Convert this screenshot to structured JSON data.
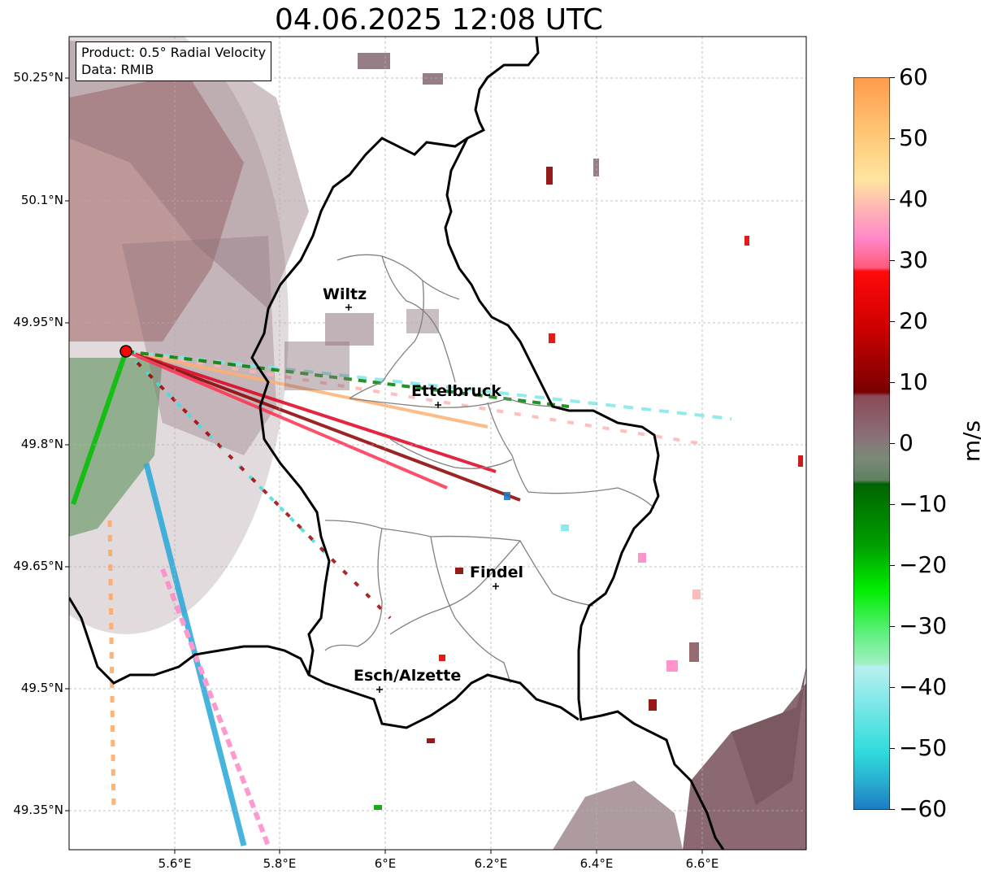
{
  "title": "04.06.2025 12:08 UTC",
  "info_box": {
    "product": "Product: 0.5° Radial Velocity",
    "data": "Data: RMIB"
  },
  "lat_labels": [
    "50.25°N",
    "50.1°N",
    "49.95°N",
    "49.8°N",
    "49.65°N",
    "49.5°N",
    "49.35°N"
  ],
  "lon_labels": [
    "5.6°E",
    "5.8°E",
    "6°E",
    "6.2°E",
    "6.4°E",
    "6.6°E"
  ],
  "cities": [
    "Wiltz",
    "Ettelbruck",
    "Findel",
    "Esch/Alzette"
  ],
  "colorbar": {
    "unit": "m/s",
    "ticks": [
      "60",
      "50",
      "40",
      "30",
      "20",
      "10",
      "0",
      "−10",
      "−20",
      "−30",
      "−40",
      "−50",
      "−60"
    ],
    "colors": [
      "#ff9b4a",
      "#ffc878",
      "#ffdba0",
      "#ffb4b4",
      "#ff88c8",
      "#ff5a7a",
      "#ff0a0a",
      "#c80000",
      "#780000",
      "#8a4a58",
      "#8a7078",
      "#5f8060",
      "#006400",
      "#00a000",
      "#00e800",
      "#80f0a0",
      "#b0f0f0",
      "#40e0e0",
      "#2a9ad0",
      "#1e7ac4"
    ]
  }
}
